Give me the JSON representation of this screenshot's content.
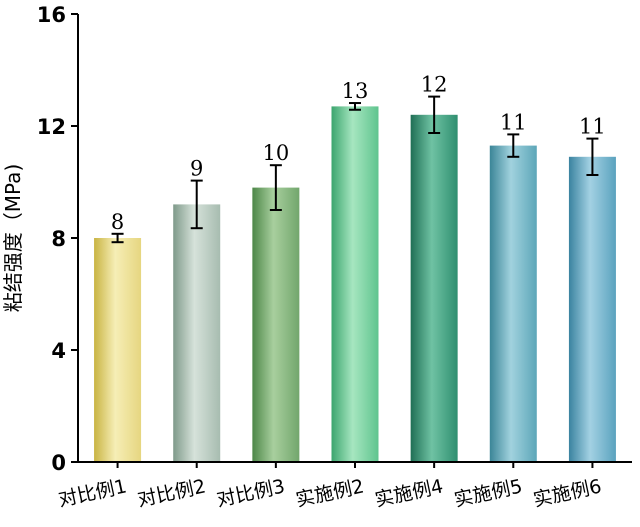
{
  "chart_data": {
    "type": "bar",
    "ylabel": "粘结强度（MPa)",
    "xlabel": "",
    "ylim": [
      0,
      16
    ],
    "yticks": [
      "0",
      "4",
      "8",
      "12",
      "16"
    ],
    "categories": [
      "对比例1",
      "对比例2",
      "对比例3",
      "实施例2",
      "实施例4",
      "实施例5",
      "实施例6"
    ],
    "values": [
      8.0,
      9.2,
      9.8,
      12.7,
      12.4,
      11.3,
      10.9
    ],
    "errors": [
      0.15,
      0.85,
      0.8,
      0.12,
      0.65,
      0.4,
      0.65
    ],
    "data_labels": [
      "8",
      "9",
      "10",
      "13",
      "12",
      "11",
      "11"
    ],
    "bar_colors": [
      [
        "#e6d680",
        "#f6eeb6",
        "#c9b442"
      ],
      [
        "#a7bcb0",
        "#d6e2da",
        "#7f9a8a"
      ],
      [
        "#72a66c",
        "#a8cf9e",
        "#4d8748"
      ],
      [
        "#5fc48e",
        "#a6e6c0",
        "#3ca56e"
      ],
      [
        "#2f8f70",
        "#6fc2a3",
        "#1f6f55"
      ],
      [
        "#5ca6b8",
        "#a1d2de",
        "#3b8597"
      ],
      [
        "#5aa2be",
        "#a3d1e3",
        "#3a83a0"
      ]
    ],
    "grid": false,
    "legend": "none"
  }
}
